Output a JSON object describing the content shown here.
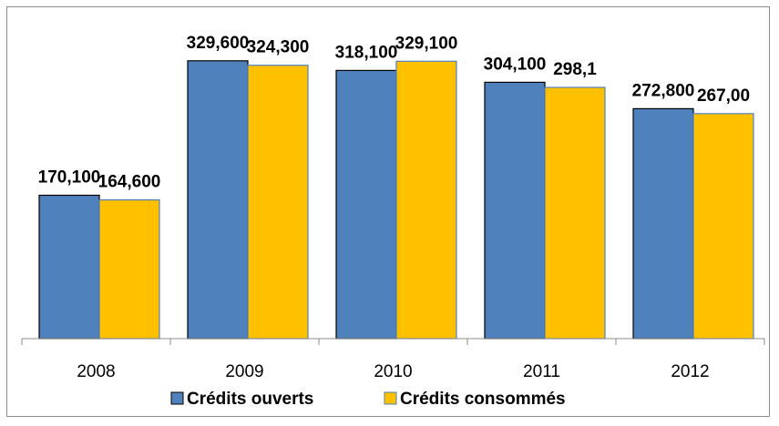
{
  "chart_data": {
    "type": "bar",
    "categories": [
      "2008",
      "2009",
      "2010",
      "2011",
      "2012"
    ],
    "series": [
      {
        "name": "Crédits ouverts",
        "values": [
          170100,
          329600,
          318100,
          304100,
          272800
        ],
        "labels": [
          "170,100",
          "329,600",
          "318,100",
          "304,100",
          "272,800"
        ],
        "color": "#4f81bd",
        "stroke": "#000000"
      },
      {
        "name": "Crédits consommés",
        "values": [
          164600,
          324300,
          329100,
          298100,
          267000
        ],
        "labels": [
          "164,600",
          "324,300",
          "329,100",
          "298,1",
          "267,00"
        ],
        "color": "#ffc000",
        "stroke": "#4f81bd"
      }
    ],
    "ylim": [
      0,
      360000
    ],
    "grid": false,
    "legend_position": "bottom"
  }
}
